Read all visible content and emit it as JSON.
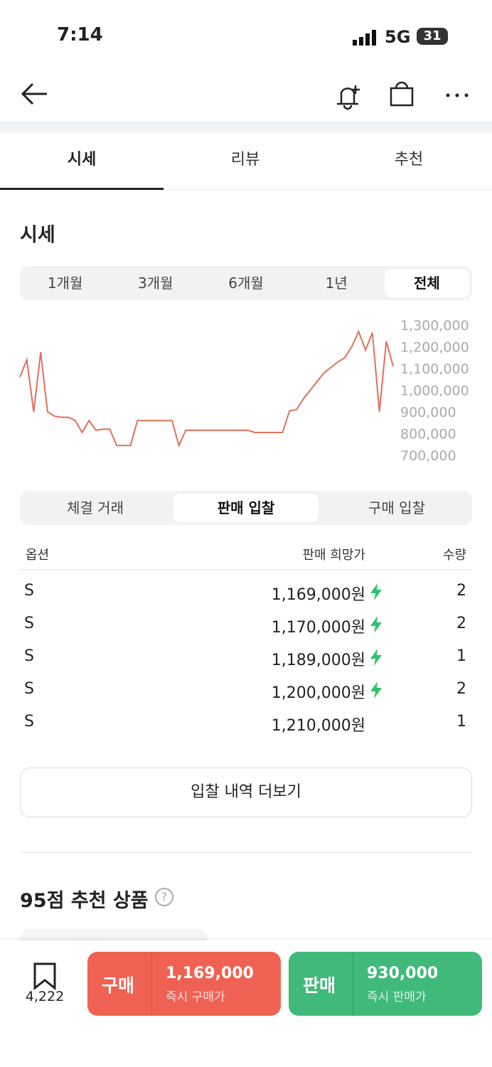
{
  "status": {
    "time": "7:14",
    "network": "5G",
    "battery": "31"
  },
  "tabs": [
    "시세",
    "리뷰",
    "추천"
  ],
  "section_title": "시세",
  "periods": [
    "1개월",
    "3개월",
    "6개월",
    "1년",
    "전체"
  ],
  "chart_data": {
    "type": "line",
    "color": "#e0705c",
    "values": [
      1060000,
      1140000,
      900000,
      1175000,
      900000,
      880000,
      875000,
      875000,
      860000,
      805000,
      860000,
      815000,
      820000,
      820000,
      745000,
      745000,
      745000,
      860000,
      860000,
      860000,
      860000,
      860000,
      860000,
      745000,
      815000,
      815000,
      815000,
      815000,
      815000,
      815000,
      815000,
      815000,
      815000,
      815000,
      805000,
      805000,
      805000,
      805000,
      805000,
      905000,
      910000,
      960000,
      1000000,
      1040000,
      1080000,
      1105000,
      1130000,
      1150000,
      1200000,
      1270000,
      1185000,
      1265000,
      900000,
      1225000,
      1110000
    ],
    "ylim": [
      700000,
      1300000
    ],
    "yticks": [
      {
        "value": 1300000,
        "label": "1,300,000"
      },
      {
        "value": 1200000,
        "label": "1,200,000"
      },
      {
        "value": 1100000,
        "label": "1,100,000"
      },
      {
        "value": 1000000,
        "label": "1,000,000"
      },
      {
        "value": 900000,
        "label": "900,000"
      },
      {
        "value": 800000,
        "label": "800,000"
      },
      {
        "value": 700000,
        "label": "700,000"
      }
    ]
  },
  "trade_tabs": [
    "체결 거래",
    "판매 입찰",
    "구매 입찰"
  ],
  "table": {
    "headers": [
      "옵션",
      "판매 희망가",
      "수량"
    ],
    "rows": [
      {
        "option": "S",
        "price": "1,169,000원",
        "qty": 2,
        "quick": true
      },
      {
        "option": "S",
        "price": "1,170,000원",
        "qty": 2,
        "quick": true
      },
      {
        "option": "S",
        "price": "1,189,000원",
        "qty": 1,
        "quick": true
      },
      {
        "option": "S",
        "price": "1,200,000원",
        "qty": 2,
        "quick": true
      },
      {
        "option": "S",
        "price": "1,210,000원",
        "qty": 1,
        "quick": false
      }
    ]
  },
  "more_button": "입찰 내역 더보기",
  "recommend_title": "95점 추천 상품",
  "bottom": {
    "bookmarks": "4,222",
    "buy": {
      "label": "구매",
      "price": "1,169,000",
      "caption": "즉시 구매가"
    },
    "sell": {
      "label": "판매",
      "price": "930,000",
      "caption": "즉시 판매가"
    }
  }
}
